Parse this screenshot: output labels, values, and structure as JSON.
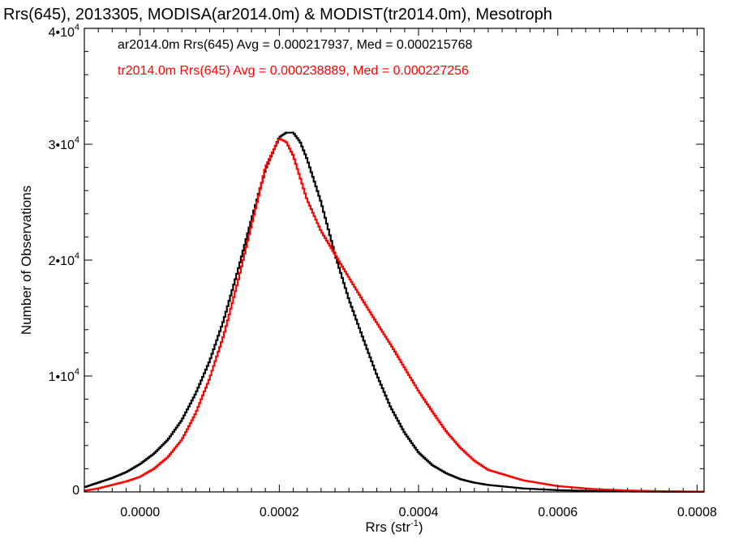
{
  "chart_data": {
    "type": "line",
    "title": "Rrs(645), 2013305, MODISA(ar2014.0m) & MODIST(tr2014.0m), Mesotroph",
    "xlabel": "Rrs (str",
    "xlabel_sup": "-1",
    "xlabel_end": ")",
    "ylabel": "Number of Observations",
    "xlim": [
      -8e-05,
      0.00081
    ],
    "ylim": [
      0,
      40000
    ],
    "x_ticks": [
      0.0,
      0.0002,
      0.0004,
      0.0006,
      0.0008
    ],
    "x_tick_labels": [
      "0.0000",
      "0.0002",
      "0.0004",
      "0.0006",
      "0.0008"
    ],
    "y_ticks": [
      0,
      10000,
      20000,
      30000,
      40000
    ],
    "y_tick_labels": [
      {
        "base": "0",
        "exp": ""
      },
      {
        "base": "1•10",
        "exp": "4"
      },
      {
        "base": "2•10",
        "exp": "4"
      },
      {
        "base": "3•10",
        "exp": "4"
      },
      {
        "base": "4•10",
        "exp": "4"
      }
    ],
    "legend_placement": "top-left",
    "legend": [
      "ar2014.0m Rrs(645) Avg = 0.000217937, Med = 0.000215768",
      "tr2014.0m Rrs(645) Avg = 0.000238889, Med = 0.000227256"
    ],
    "series": [
      {
        "color": "#000000",
        "x": [
          -8e-05,
          -6e-05,
          -4e-05,
          -2e-05,
          0.0,
          2e-05,
          4e-05,
          6e-05,
          8e-05,
          0.0001,
          0.00012,
          0.00014,
          0.00016,
          0.00018,
          0.0002,
          0.00021,
          0.00022,
          0.00023,
          0.00024,
          0.00026,
          0.00028,
          0.0003,
          0.00032,
          0.00034,
          0.00036,
          0.00038,
          0.0004,
          0.00042,
          0.00044,
          0.00046,
          0.00048,
          0.0005,
          0.00055,
          0.0006,
          0.00065,
          0.0007,
          0.00075,
          0.00081
        ],
        "y": [
          400,
          800,
          1200,
          1700,
          2400,
          3300,
          4500,
          6200,
          8500,
          11300,
          14800,
          19000,
          23500,
          27800,
          30600,
          31000,
          31000,
          30200,
          28700,
          25000,
          20500,
          16600,
          13300,
          10100,
          7300,
          5100,
          3400,
          2300,
          1600,
          1100,
          800,
          600,
          300,
          150,
          80,
          40,
          20,
          10
        ]
      },
      {
        "color": "#ff0000",
        "x": [
          -8e-05,
          -6e-05,
          -4e-05,
          -2e-05,
          0.0,
          2e-05,
          4e-05,
          6e-05,
          8e-05,
          0.0001,
          0.00012,
          0.00014,
          0.00016,
          0.00018,
          0.0002,
          0.00021,
          0.00022,
          0.00024,
          0.00026,
          0.00028,
          0.0003,
          0.00032,
          0.00034,
          0.00036,
          0.00038,
          0.0004,
          0.00042,
          0.00044,
          0.00046,
          0.00048,
          0.0005,
          0.00055,
          0.0006,
          0.00065,
          0.0007,
          0.00075,
          0.00081
        ],
        "y": [
          100,
          300,
          600,
          900,
          1300,
          2000,
          3000,
          4500,
          6800,
          9800,
          13500,
          18000,
          23000,
          28000,
          30500,
          30200,
          29000,
          25200,
          22500,
          20500,
          18500,
          16500,
          14600,
          12700,
          10700,
          8700,
          6900,
          5200,
          3800,
          2700,
          1900,
          1000,
          500,
          250,
          120,
          60,
          20
        ]
      }
    ]
  }
}
